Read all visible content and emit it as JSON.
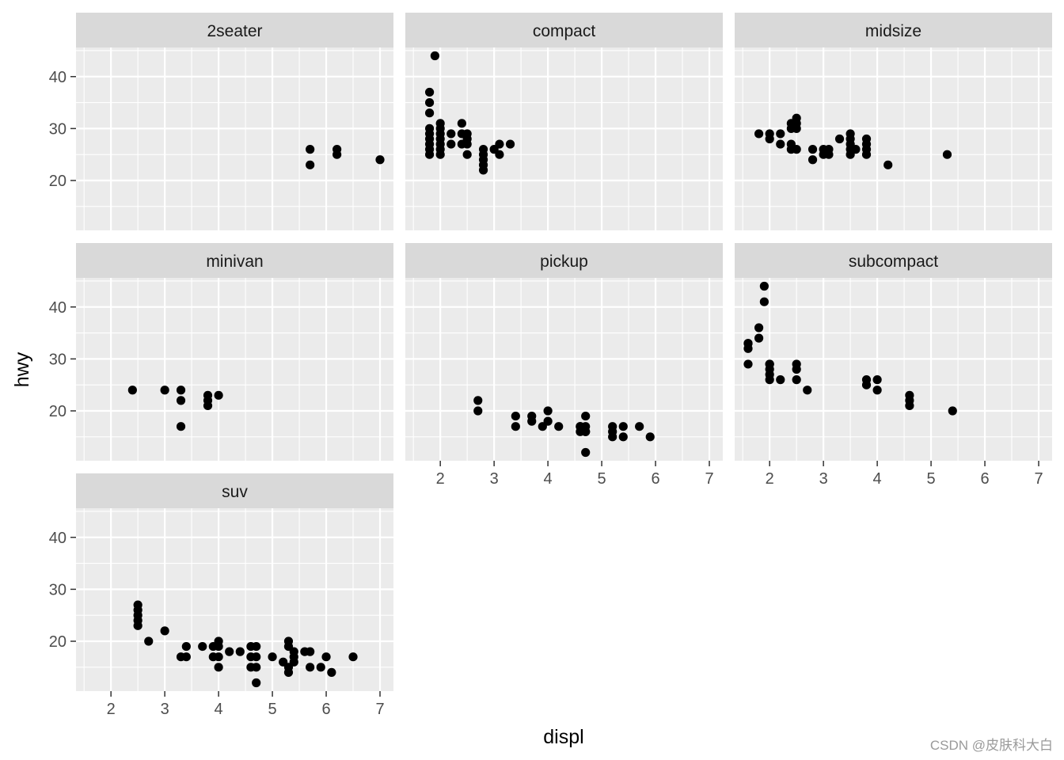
{
  "chart_data": {
    "type": "scatter",
    "facet_var": "class",
    "xlabel": "displ",
    "ylabel": "hwy",
    "xlim": [
      1.35,
      7.25
    ],
    "ylim": [
      10.4,
      45.6
    ],
    "x_ticks": [
      2,
      3,
      4,
      5,
      6,
      7
    ],
    "y_ticks": [
      20,
      30,
      40
    ],
    "grid": true,
    "panels": [
      {
        "name": "2seater",
        "x": [
          5.7,
          5.7,
          6.2,
          6.2,
          7.0
        ],
        "y": [
          26,
          23,
          26,
          25,
          24
        ]
      },
      {
        "name": "compact",
        "x": [
          1.8,
          1.8,
          1.8,
          1.8,
          1.8,
          1.8,
          1.8,
          1.8,
          1.8,
          1.9,
          2.0,
          2.0,
          2.0,
          2.0,
          2.0,
          2.0,
          2.0,
          2.2,
          2.2,
          2.4,
          2.4,
          2.4,
          2.5,
          2.5,
          2.5,
          2.5,
          2.8,
          2.8,
          2.8,
          2.8,
          2.8,
          3.0,
          3.1,
          3.1,
          3.3
        ],
        "y": [
          37,
          35,
          33,
          30,
          29,
          28,
          27,
          26,
          25,
          44,
          31,
          30,
          29,
          28,
          27,
          26,
          25,
          29,
          27,
          31,
          29,
          27,
          29,
          28,
          27,
          25,
          26,
          25,
          24,
          23,
          22,
          26,
          27,
          25,
          27
        ]
      },
      {
        "name": "midsize",
        "x": [
          1.8,
          2.0,
          2.0,
          2.2,
          2.2,
          2.4,
          2.4,
          2.4,
          2.4,
          2.5,
          2.5,
          2.5,
          2.5,
          2.8,
          2.8,
          3.0,
          3.0,
          3.1,
          3.1,
          3.3,
          3.5,
          3.5,
          3.5,
          3.5,
          3.5,
          3.6,
          3.8,
          3.8,
          3.8,
          3.8,
          4.2,
          5.3
        ],
        "y": [
          29,
          29,
          28,
          29,
          27,
          31,
          30,
          27,
          26,
          32,
          31,
          30,
          26,
          26,
          24,
          26,
          25,
          26,
          25,
          28,
          29,
          28,
          27,
          26,
          25,
          26,
          28,
          27,
          26,
          25,
          23,
          25
        ]
      },
      {
        "name": "minivan",
        "x": [
          2.4,
          3.0,
          3.3,
          3.3,
          3.3,
          3.8,
          3.8,
          3.8,
          4.0
        ],
        "y": [
          24,
          24,
          24,
          22,
          17,
          23,
          22,
          21,
          23
        ]
      },
      {
        "name": "pickup",
        "x": [
          2.7,
          2.7,
          3.4,
          3.4,
          3.7,
          3.7,
          3.9,
          4.0,
          4.0,
          4.2,
          4.6,
          4.6,
          4.6,
          4.7,
          4.7,
          4.7,
          4.7,
          4.7,
          5.2,
          5.2,
          5.2,
          5.4,
          5.4,
          5.7,
          5.9
        ],
        "y": [
          22,
          20,
          19,
          17,
          19,
          18,
          17,
          20,
          18,
          17,
          17,
          16,
          17,
          19,
          17,
          16,
          16,
          12,
          17,
          16,
          15,
          17,
          15,
          17,
          15
        ]
      },
      {
        "name": "subcompact",
        "x": [
          1.6,
          1.6,
          1.6,
          1.6,
          1.8,
          1.8,
          1.9,
          1.9,
          2.0,
          2.0,
          2.0,
          2.0,
          2.0,
          2.2,
          2.5,
          2.5,
          2.5,
          2.7,
          3.8,
          3.8,
          4.0,
          4.0,
          4.6,
          4.6,
          4.6,
          5.4
        ],
        "y": [
          33,
          32,
          29,
          33,
          36,
          34,
          44,
          41,
          29,
          28,
          27,
          26,
          29,
          26,
          29,
          28,
          26,
          24,
          26,
          25,
          26,
          24,
          23,
          22,
          21,
          20
        ]
      },
      {
        "name": "suv",
        "x": [
          2.5,
          2.5,
          2.5,
          2.5,
          2.5,
          2.7,
          3.0,
          3.3,
          3.4,
          3.4,
          3.7,
          3.9,
          3.9,
          4.0,
          4.0,
          4.0,
          4.0,
          4.2,
          4.4,
          4.6,
          4.6,
          4.6,
          4.7,
          4.7,
          4.7,
          4.7,
          5.0,
          5.2,
          5.3,
          5.3,
          5.3,
          5.3,
          5.4,
          5.4,
          5.4,
          5.6,
          5.7,
          5.7,
          5.9,
          6.0,
          6.1,
          6.5
        ],
        "y": [
          27,
          26,
          25,
          24,
          23,
          20,
          22,
          17,
          19,
          17,
          19,
          17,
          19,
          20,
          19,
          17,
          15,
          18,
          18,
          19,
          17,
          15,
          19,
          17,
          15,
          12,
          17,
          16,
          20,
          19,
          15,
          14,
          18,
          17,
          16,
          18,
          18,
          15,
          15,
          17,
          14,
          17
        ]
      }
    ]
  },
  "watermark": "CSDN @皮肤科大白"
}
